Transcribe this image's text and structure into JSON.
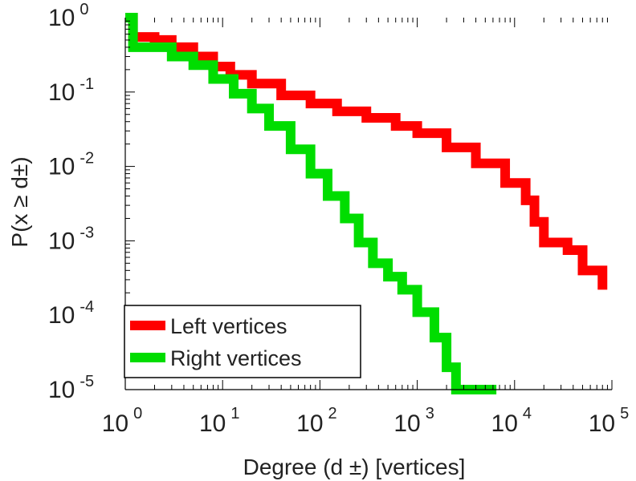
{
  "chart_data": {
    "type": "line",
    "title": "",
    "xlabel": "Degree (d ±) [vertices]",
    "ylabel": "P(x ≥ d±)",
    "x_scale": "log",
    "y_scale": "log",
    "xlim": [
      1,
      100000
    ],
    "ylim": [
      1e-05,
      1
    ],
    "grid": false,
    "legend_position": "bottom-left",
    "x_ticks": [
      {
        "base": "10",
        "exp": "0"
      },
      {
        "base": "10",
        "exp": "1"
      },
      {
        "base": "10",
        "exp": "2"
      },
      {
        "base": "10",
        "exp": "3"
      },
      {
        "base": "10",
        "exp": "4"
      },
      {
        "base": "10",
        "exp": "5"
      }
    ],
    "y_ticks": [
      {
        "base": "10",
        "exp": "0"
      },
      {
        "base": "10",
        "exp": "-1"
      },
      {
        "base": "10",
        "exp": "-2"
      },
      {
        "base": "10",
        "exp": "-3"
      },
      {
        "base": "10",
        "exp": "-4"
      },
      {
        "base": "10",
        "exp": "-5"
      }
    ],
    "series": [
      {
        "name": "Left vertices",
        "color": "#ff0000",
        "points": [
          [
            1,
            1
          ],
          [
            1.2,
            0.55
          ],
          [
            2,
            0.5
          ],
          [
            3,
            0.4
          ],
          [
            5,
            0.3
          ],
          [
            8,
            0.22
          ],
          [
            12,
            0.17
          ],
          [
            20,
            0.13
          ],
          [
            40,
            0.09
          ],
          [
            80,
            0.07
          ],
          [
            150,
            0.055
          ],
          [
            300,
            0.045
          ],
          [
            600,
            0.035
          ],
          [
            1000,
            0.028
          ],
          [
            2000,
            0.018
          ],
          [
            4000,
            0.011
          ],
          [
            8000,
            0.006
          ],
          [
            13000,
            0.0035
          ],
          [
            16000,
            0.0018
          ],
          [
            20000,
            0.00095
          ],
          [
            35000,
            0.00075
          ],
          [
            50000,
            0.0004
          ],
          [
            80000,
            0.00022
          ]
        ]
      },
      {
        "name": "Right vertices",
        "color": "#00dd00",
        "points": [
          [
            1,
            1
          ],
          [
            1.2,
            0.4
          ],
          [
            2,
            0.4
          ],
          [
            3,
            0.3
          ],
          [
            5,
            0.23
          ],
          [
            8,
            0.15
          ],
          [
            13,
            0.095
          ],
          [
            20,
            0.06
          ],
          [
            30,
            0.035
          ],
          [
            50,
            0.017
          ],
          [
            80,
            0.008
          ],
          [
            120,
            0.004
          ],
          [
            180,
            0.002
          ],
          [
            250,
            0.00095
          ],
          [
            350,
            0.0005
          ],
          [
            500,
            0.00033
          ],
          [
            700,
            0.00022
          ],
          [
            1000,
            0.00011
          ],
          [
            1500,
            5e-05
          ],
          [
            2000,
            2e-05
          ],
          [
            2500,
            1e-05
          ],
          [
            6500,
            1e-05
          ]
        ]
      }
    ]
  }
}
